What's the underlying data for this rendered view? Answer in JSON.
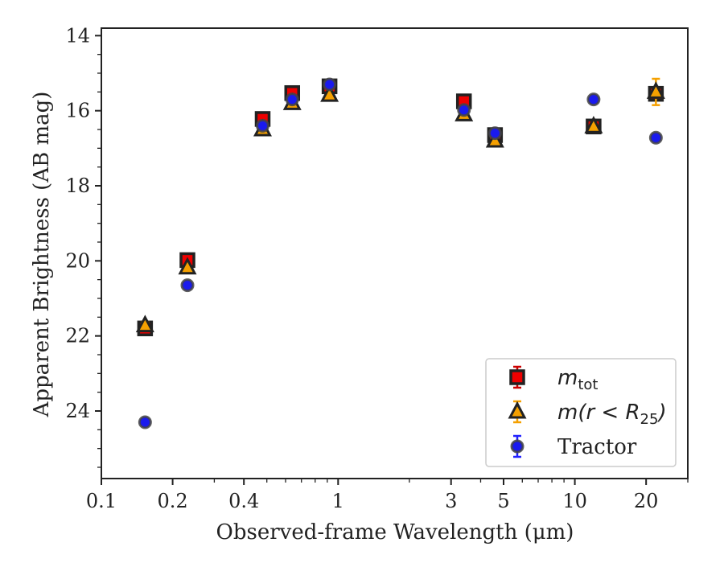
{
  "chart_data": {
    "type": "scatter",
    "xlabel": "Observed-frame Wavelength (μm)",
    "ylabel": "Apparent Brightness (AB mag)",
    "x_scale": "log",
    "xlim": [
      0.1,
      30
    ],
    "ylim": [
      25.8,
      13.8
    ],
    "y_inverted": true,
    "x_ticks": [
      {
        "value": 0.1,
        "label": "0.1"
      },
      {
        "value": 0.2,
        "label": "0.2"
      },
      {
        "value": 0.4,
        "label": "0.4"
      },
      {
        "value": 1,
        "label": "1"
      },
      {
        "value": 3,
        "label": "3"
      },
      {
        "value": 5,
        "label": "5"
      },
      {
        "value": 10,
        "label": "10"
      },
      {
        "value": 20,
        "label": "20"
      }
    ],
    "y_ticks": [
      {
        "value": 14,
        "label": "14"
      },
      {
        "value": 16,
        "label": "16"
      },
      {
        "value": 18,
        "label": "18"
      },
      {
        "value": 20,
        "label": "20"
      },
      {
        "value": 22,
        "label": "22"
      },
      {
        "value": 24,
        "label": "24"
      }
    ],
    "grid": false,
    "legend_position": "lower-right",
    "series": [
      {
        "legend_main": "m",
        "legend_sub": "tot",
        "legend_suffix": "",
        "marker": "square",
        "color": "#ee0000",
        "edge_color": "#222222",
        "error_color": "#cc0000",
        "points": [
          {
            "x": 0.153,
            "y": 21.8,
            "err": 0.08
          },
          {
            "x": 0.231,
            "y": 19.98,
            "err": 0.05
          },
          {
            "x": 0.48,
            "y": 16.22,
            "err": 0.05
          },
          {
            "x": 0.64,
            "y": 15.53,
            "err": 0.05
          },
          {
            "x": 0.92,
            "y": 15.35,
            "err": 0.05
          },
          {
            "x": 3.4,
            "y": 15.75,
            "err": 0.05
          },
          {
            "x": 4.6,
            "y": 16.65,
            "err": 0.05
          },
          {
            "x": 12.0,
            "y": 16.42,
            "err": 0.06
          },
          {
            "x": 22.0,
            "y": 15.55,
            "err": 0.15
          }
        ]
      },
      {
        "legend_main": "m(r < R",
        "legend_sub": "25",
        "legend_suffix": ")",
        "marker": "triangle",
        "color": "#f5a000",
        "edge_color": "#222222",
        "error_color": "#f5a000",
        "points": [
          {
            "x": 0.153,
            "y": 21.72,
            "err": 0.08
          },
          {
            "x": 0.231,
            "y": 20.18,
            "err": 0.05
          },
          {
            "x": 0.48,
            "y": 16.5,
            "err": 0.05
          },
          {
            "x": 0.64,
            "y": 15.8,
            "err": 0.05
          },
          {
            "x": 0.92,
            "y": 15.58,
            "err": 0.05
          },
          {
            "x": 3.4,
            "y": 16.1,
            "err": 0.05
          },
          {
            "x": 4.6,
            "y": 16.8,
            "err": 0.05
          },
          {
            "x": 12.0,
            "y": 16.42,
            "err": 0.06
          },
          {
            "x": 22.0,
            "y": 15.5,
            "err": 0.35
          }
        ]
      },
      {
        "legend_main": "Tractor",
        "legend_sub": "",
        "legend_suffix": "",
        "marker": "circle",
        "color": "#1a1aee",
        "edge_color": "#444444",
        "error_color": "#2222ff",
        "points": [
          {
            "x": 0.153,
            "y": 24.3,
            "err": 0.05
          },
          {
            "x": 0.231,
            "y": 20.65,
            "err": 0.05
          },
          {
            "x": 0.48,
            "y": 16.4,
            "err": 0.05
          },
          {
            "x": 0.64,
            "y": 15.7,
            "err": 0.05
          },
          {
            "x": 0.92,
            "y": 15.3,
            "err": 0.05
          },
          {
            "x": 3.4,
            "y": 15.98,
            "err": 0.05
          },
          {
            "x": 4.6,
            "y": 16.6,
            "err": 0.05
          },
          {
            "x": 12.0,
            "y": 15.7,
            "err": 0.05
          },
          {
            "x": 22.0,
            "y": 16.72,
            "err": 0.05
          }
        ]
      }
    ]
  }
}
